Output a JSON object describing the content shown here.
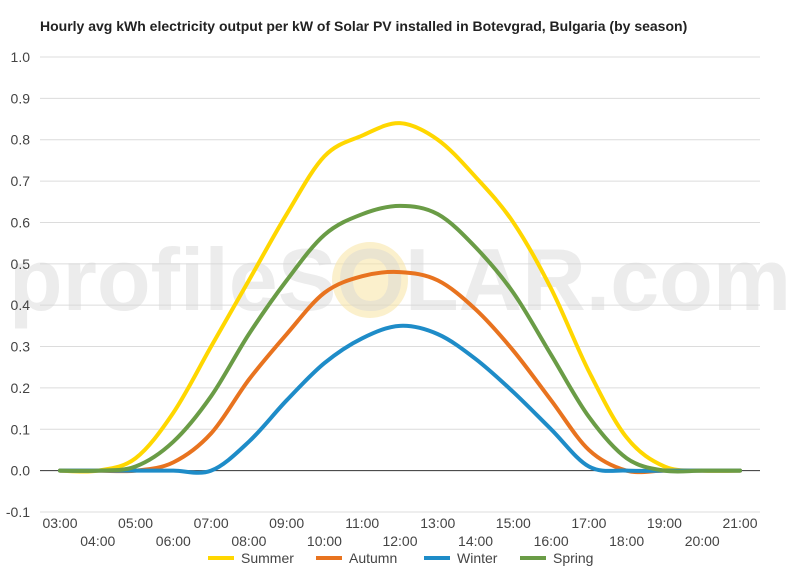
{
  "chart_data": {
    "type": "line",
    "title": "Hourly avg kWh electricity output per kW of Solar PV installed in Botevgrad, Bulgaria (by season)",
    "xlabel": "",
    "ylabel": "",
    "ylim": [
      -0.1,
      1.0
    ],
    "yticks": [
      "1.0",
      "0.9",
      "0.8",
      "0.7",
      "0.6",
      "0.5",
      "0.4",
      "0.3",
      "0.2",
      "0.1",
      "0.0",
      "-0.1"
    ],
    "x": [
      "03:00",
      "04:00",
      "05:00",
      "06:00",
      "07:00",
      "08:00",
      "09:00",
      "10:00",
      "11:00",
      "12:00",
      "13:00",
      "14:00",
      "15:00",
      "16:00",
      "17:00",
      "18:00",
      "19:00",
      "20:00",
      "21:00"
    ],
    "grid": true,
    "legend": "bottom",
    "series": [
      {
        "name": "Summer",
        "color": "#FFD700",
        "values": [
          0,
          0,
          0.03,
          0.14,
          0.3,
          0.46,
          0.62,
          0.76,
          0.81,
          0.84,
          0.8,
          0.71,
          0.6,
          0.44,
          0.24,
          0.08,
          0.01,
          0,
          0
        ]
      },
      {
        "name": "Autumn",
        "color": "#E8731F",
        "values": [
          0,
          0,
          0,
          0.02,
          0.09,
          0.22,
          0.33,
          0.43,
          0.47,
          0.48,
          0.46,
          0.39,
          0.29,
          0.17,
          0.05,
          0,
          0,
          0,
          0
        ]
      },
      {
        "name": "Winter",
        "color": "#1E8CC8",
        "values": [
          0,
          0,
          0,
          0,
          0,
          0.07,
          0.17,
          0.26,
          0.32,
          0.35,
          0.33,
          0.27,
          0.19,
          0.1,
          0.01,
          0,
          0,
          0,
          0
        ]
      },
      {
        "name": "Spring",
        "color": "#6A9C46",
        "values": [
          0,
          0,
          0.01,
          0.07,
          0.18,
          0.33,
          0.46,
          0.57,
          0.62,
          0.64,
          0.62,
          0.54,
          0.43,
          0.28,
          0.13,
          0.03,
          0,
          0,
          0
        ]
      }
    ],
    "watermark": "profileSOLAR.com"
  }
}
